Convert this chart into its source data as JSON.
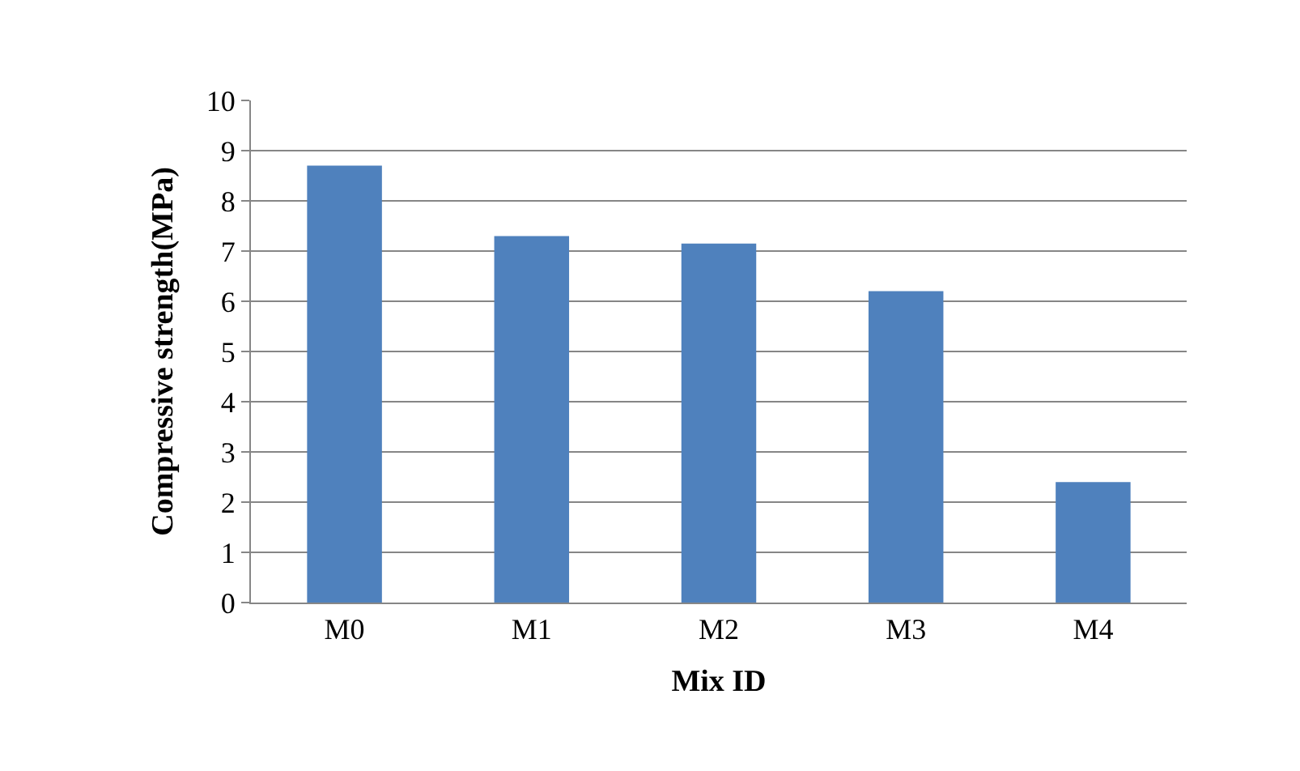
{
  "chart_data": {
    "type": "bar",
    "xlabel": "Mix ID",
    "ylabel": "Compressive strength(MPa)",
    "categories": [
      "M0",
      "M1",
      "M2",
      "M3",
      "M4"
    ],
    "values": [
      8.7,
      7.3,
      7.15,
      6.2,
      2.4
    ],
    "color": "#4f81bd",
    "ylim": [
      0,
      10
    ],
    "yticks": [
      0,
      1,
      2,
      3,
      4,
      5,
      6,
      7,
      8,
      9,
      10
    ],
    "grid": "y",
    "legend": false
  }
}
